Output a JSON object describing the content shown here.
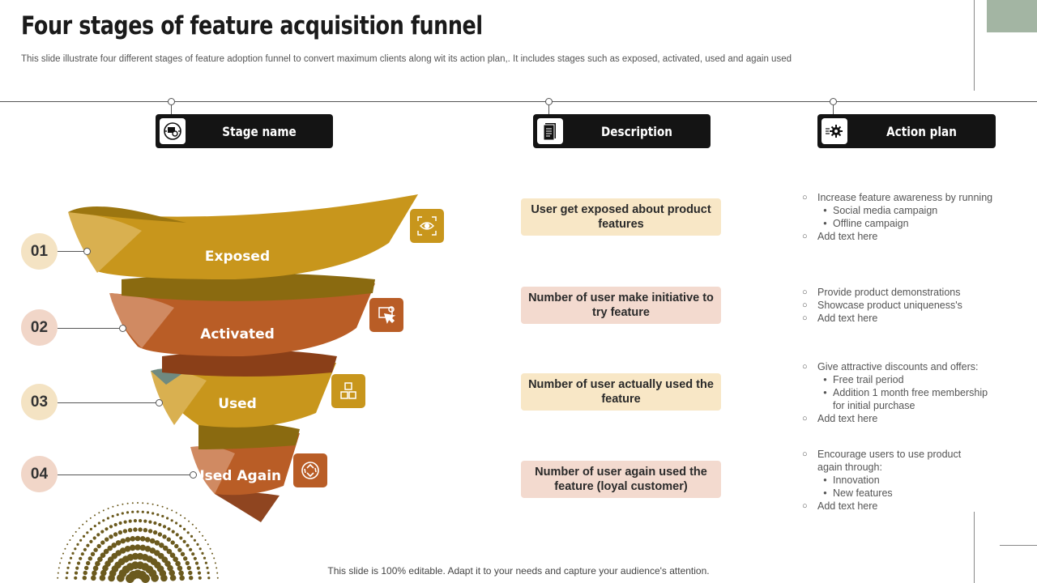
{
  "title": "Four stages of feature acquisition funnel",
  "subtitle": "This slide illustrate four different stages of feature adoption funnel to convert maximum clients along wit its action plan,. It includes stages such as exposed, activated, used and again used",
  "headers": [
    {
      "label": "Stage name",
      "icon": "funnel-target-icon"
    },
    {
      "label": "Description",
      "icon": "document-icon"
    },
    {
      "label": "Action plan",
      "icon": "gear-arrows-icon"
    }
  ],
  "stages": [
    {
      "number": "01",
      "name": "Exposed",
      "icon": "eye-scan-icon",
      "color": "#c8961c"
    },
    {
      "number": "02",
      "name": "Activated",
      "icon": "click-screen-icon",
      "color": "#b95d26"
    },
    {
      "number": "03",
      "name": "Used",
      "icon": "boxes-icon",
      "color": "#c8961c"
    },
    {
      "number": "04",
      "name": "Used Again",
      "icon": "recycle-icon",
      "color": "#b95d26"
    }
  ],
  "descriptions": [
    "User get exposed about product features",
    "Number of user make initiative to try feature",
    "Number of user actually used the feature",
    "Number of user again used the feature (loyal customer)"
  ],
  "actions": [
    [
      {
        "level": 1,
        "text": "Increase feature awareness by running"
      },
      {
        "level": 2,
        "text": "Social media campaign"
      },
      {
        "level": 2,
        "text": "Offline campaign"
      },
      {
        "level": 1,
        "text": "Add text here"
      }
    ],
    [
      {
        "level": 1,
        "text": "Provide product demonstrations"
      },
      {
        "level": 1,
        "text": "Showcase product uniqueness's"
      },
      {
        "level": 1,
        "text": "Add text here"
      }
    ],
    [
      {
        "level": 1,
        "text": "Give attractive discounts and offers:"
      },
      {
        "level": 2,
        "text": "Free trail period"
      },
      {
        "level": 2,
        "text": "Addition 1 month free membership for initial purchase"
      },
      {
        "level": 1,
        "text": "Add text here"
      }
    ],
    [
      {
        "level": 1,
        "text": "Encourage users to use product again through:"
      },
      {
        "level": 2,
        "text": "Innovation"
      },
      {
        "level": 2,
        "text": "New features"
      },
      {
        "level": 1,
        "text": "Add text here"
      }
    ]
  ],
  "footer": "This slide is 100% editable. Adapt it to your needs and capture your audience's attention.",
  "colors": {
    "accent_yellow": "#c8961c",
    "accent_orange": "#b95d26",
    "header_bg": "#141414",
    "deco_green": "#a3b5a3"
  }
}
